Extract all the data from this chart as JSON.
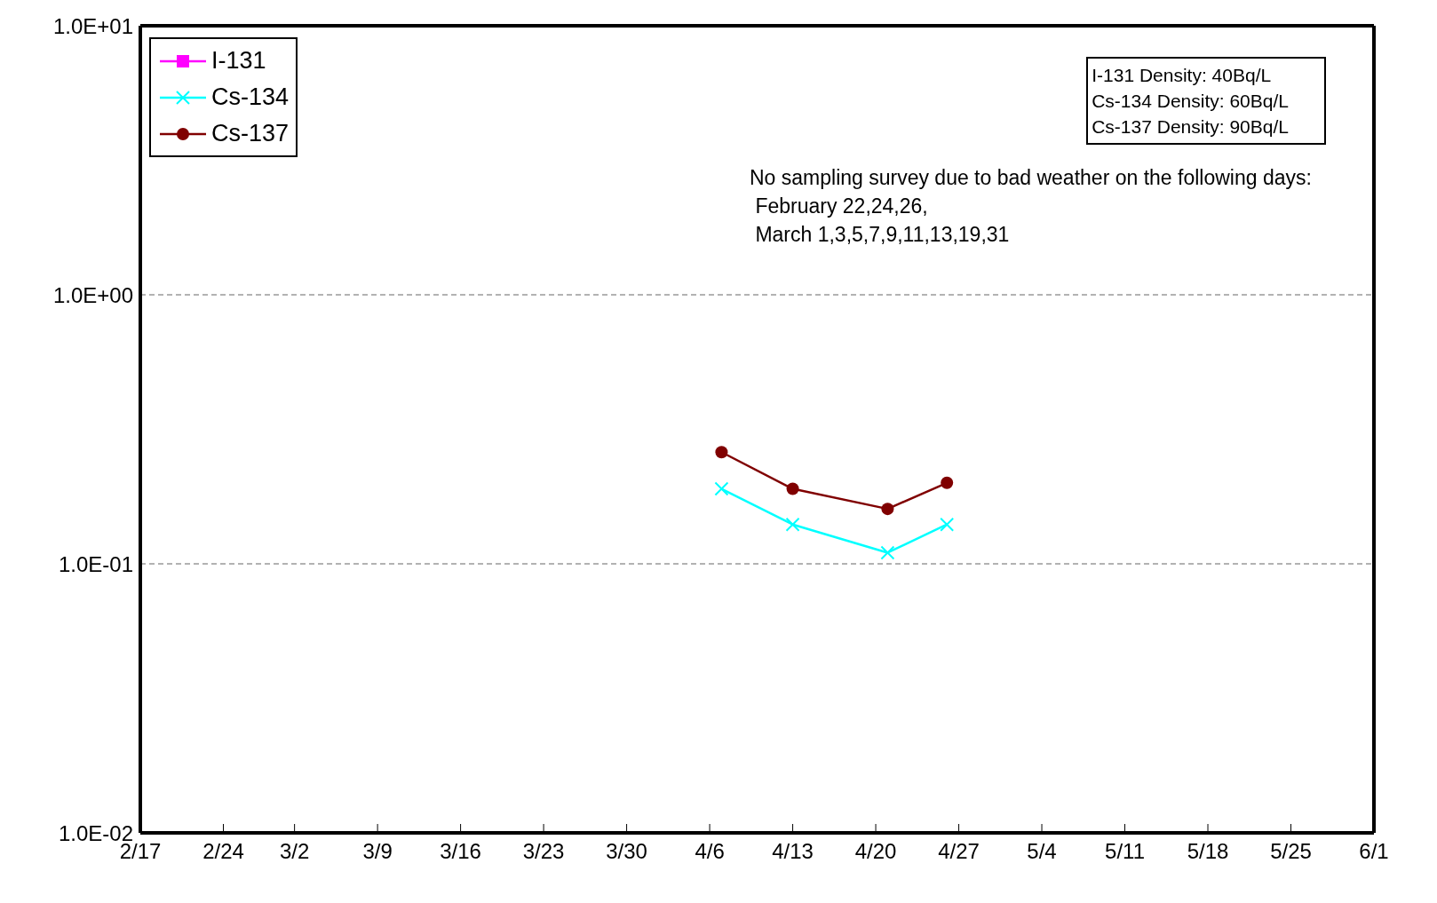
{
  "chart_data": {
    "type": "line",
    "legend": "top left",
    "grid": "y",
    "log": "y",
    "ylim": [
      0.01,
      10
    ],
    "yticks": [
      {
        "value": 0.01,
        "label": "1.0E-02"
      },
      {
        "value": 0.1,
        "label": "1.0E-01"
      },
      {
        "value": 1,
        "label": "1.0E+00"
      },
      {
        "value": 10,
        "label": "1.0E+01"
      }
    ],
    "xlim": [
      "--02-17",
      "--06-01"
    ],
    "xticks": [
      {
        "value": "--02-17",
        "label": "2/17"
      },
      {
        "value": "--02-24",
        "label": "2/24"
      },
      {
        "value": "--03-02",
        "label": "3/2"
      },
      {
        "value": "--03-09",
        "label": "3/9"
      },
      {
        "value": "--03-16",
        "label": "3/16"
      },
      {
        "value": "--03-23",
        "label": "3/23"
      },
      {
        "value": "--03-30",
        "label": "3/30"
      },
      {
        "value": "--04-06",
        "label": "4/6"
      },
      {
        "value": "--04-13",
        "label": "4/13"
      },
      {
        "value": "--04-20",
        "label": "4/20"
      },
      {
        "value": "--04-27",
        "label": "4/27"
      },
      {
        "value": "--05-04",
        "label": "5/4"
      },
      {
        "value": "--05-11",
        "label": "5/11"
      },
      {
        "value": "--05-18",
        "label": "5/18"
      },
      {
        "value": "--05-25",
        "label": "5/25"
      },
      {
        "value": "--06-01",
        "label": "6/1"
      }
    ],
    "x": [
      "--04-07",
      "--04-13",
      "--04-21",
      "--04-26"
    ],
    "series": [
      {
        "name": "I-131",
        "color": "#ff00ff",
        "marker": "square",
        "values": [
          null,
          null,
          null,
          null
        ]
      },
      {
        "name": "Cs-134",
        "color": "#00ffff",
        "marker": "cross",
        "values": [
          0.19,
          0.14,
          0.11,
          0.14
        ]
      },
      {
        "name": "Cs-137",
        "color": "#800000",
        "marker": "circle",
        "values": [
          0.26,
          0.19,
          0.16,
          0.2
        ]
      }
    ],
    "annotations": [
      "I-131 Density: 40Bq/L\nCs-134 Density: 60Bq/L\nCs-137 Density: 90Bq/L",
      "No sampling survey due to bad weather on the following days:\n February 22,24,26,\n March 1,3,5,7,9,11,13,19,31"
    ]
  }
}
